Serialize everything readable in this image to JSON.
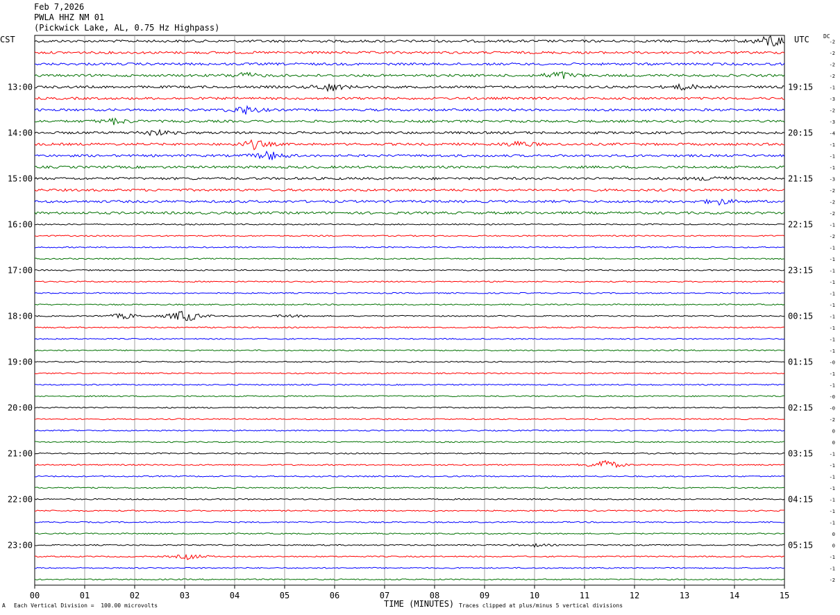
{
  "header": {
    "date": "Feb 7,2026",
    "station": "PWLA HHZ NM 01",
    "location": "(Pickwick Lake, AL, 0.75 Hz Highpass)"
  },
  "left_tz": "CST",
  "right_tz": "UTC",
  "dc_label": "DC",
  "footer": {
    "scale": "Each Vertical Division =  100.00 microvolts",
    "clip": "Traces clipped at plus/minus 5 vertical divisions",
    "corner": "A"
  },
  "chart_data": {
    "type": "line",
    "xlabel": "TIME (MINUTES)",
    "xlim": [
      0,
      15
    ],
    "x_ticks": [
      "00",
      "01",
      "02",
      "03",
      "04",
      "05",
      "06",
      "07",
      "08",
      "09",
      "10",
      "11",
      "12",
      "13",
      "14",
      "15"
    ],
    "colors": [
      "#000000",
      "#ff0000",
      "#0000ff",
      "#007000"
    ],
    "trace_count": 48,
    "left_labels": [
      "13:00",
      "14:00",
      "15:00",
      "16:00",
      "17:00",
      "18:00",
      "19:00",
      "20:00",
      "21:00",
      "22:00",
      "23:00"
    ],
    "right_labels": [
      "19:15",
      "20:15",
      "21:15",
      "22:15",
      "23:15",
      "00:15",
      "01:15",
      "02:15",
      "03:15",
      "04:15",
      "05:15"
    ],
    "label_trace_index": [
      4,
      8,
      12,
      16,
      20,
      24,
      28,
      32,
      36,
      40,
      44
    ],
    "dc_offsets": [
      "-2",
      "-2",
      "-2",
      "-2",
      "-1",
      "-3",
      "-2",
      "-3",
      "-4",
      "-1",
      "-1",
      "-1",
      "-3",
      "-2",
      "-2",
      "-2",
      "-1",
      "-2",
      "-1",
      "-1",
      "-1",
      "-1",
      "-1",
      "-1",
      "-1",
      "-1",
      "-1",
      "-1",
      "-0",
      "-1",
      "-1",
      "-0",
      "-0",
      "-2",
      "0",
      "0",
      "-1",
      "-1",
      "-1",
      "-1",
      "-1",
      "-1",
      "-1",
      "0",
      "0",
      "-1",
      "-1",
      "-2"
    ],
    "events": [
      {
        "trace": 0,
        "minute": 14.75,
        "amplitude": 5
      },
      {
        "trace": 3,
        "minute": 4.2,
        "amplitude": 2
      },
      {
        "trace": 3,
        "minute": 10.5,
        "amplitude": 3
      },
      {
        "trace": 4,
        "minute": 5.9,
        "amplitude": 3
      },
      {
        "trace": 4,
        "minute": 13.0,
        "amplitude": 2
      },
      {
        "trace": 6,
        "minute": 4.2,
        "amplitude": 3
      },
      {
        "trace": 7,
        "minute": 1.6,
        "amplitude": 2
      },
      {
        "trace": 8,
        "minute": 2.4,
        "amplitude": 2
      },
      {
        "trace": 9,
        "minute": 4.4,
        "amplitude": 3
      },
      {
        "trace": 9,
        "minute": 9.7,
        "amplitude": 2
      },
      {
        "trace": 10,
        "minute": 4.7,
        "amplitude": 3
      },
      {
        "trace": 12,
        "minute": 13.6,
        "amplitude": 2
      },
      {
        "trace": 14,
        "minute": 13.7,
        "amplitude": 2
      },
      {
        "trace": 24,
        "minute": 1.8,
        "amplitude": 2
      },
      {
        "trace": 24,
        "minute": 3.0,
        "amplitude": 5
      },
      {
        "trace": 24,
        "minute": 5.1,
        "amplitude": 1
      },
      {
        "trace": 37,
        "minute": 11.4,
        "amplitude": 4
      },
      {
        "trace": 44,
        "minute": 10.0,
        "amplitude": 1
      },
      {
        "trace": 45,
        "minute": 3.1,
        "amplitude": 2
      }
    ]
  }
}
